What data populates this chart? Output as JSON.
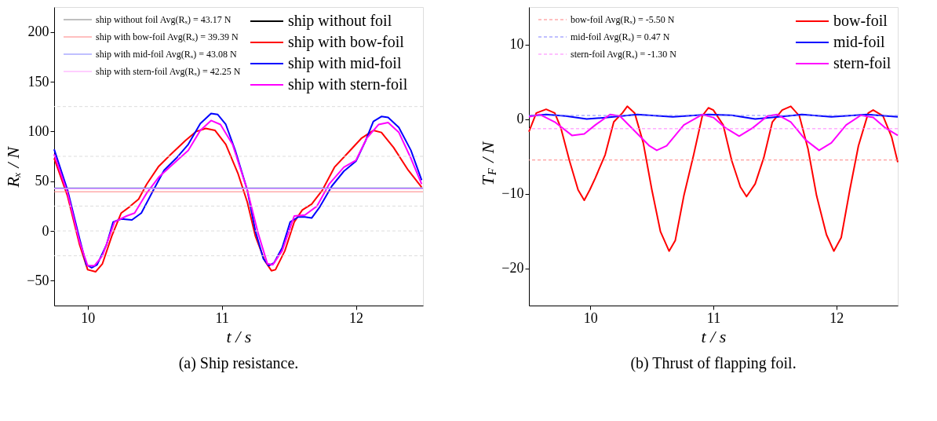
{
  "chart_data": [
    {
      "type": "line",
      "title": "(a) Ship resistance.",
      "xlabel": "t / s",
      "ylabel": "Rₓ / N",
      "xlim": [
        9.75,
        12.5
      ],
      "xticks": [
        10,
        11,
        12
      ],
      "ylim": [
        -75,
        225
      ],
      "yticks": [
        -50,
        0,
        50,
        100,
        150,
        200
      ],
      "legend": "top right",
      "ref_lines": [
        {
          "axis": "y",
          "value": 125,
          "color": "#dddddd",
          "line_style": "dashed"
        },
        {
          "axis": "y",
          "value": 75,
          "color": "#dddddd",
          "line_style": "dashed"
        },
        {
          "axis": "y",
          "value": 25,
          "color": "#dddddd",
          "line_style": "dashed"
        },
        {
          "axis": "y",
          "value": 0,
          "color": "#dddddd",
          "line_style": "dashed"
        },
        {
          "axis": "y",
          "value": -25,
          "color": "#dddddd",
          "line_style": "dashed"
        },
        {
          "axis": "y",
          "value": 43.17,
          "label": "ship without foil Avg(Rₓ) = 43.17 N",
          "color": "#808080",
          "line_style": "solid"
        },
        {
          "axis": "y",
          "value": 39.39,
          "label": "ship with bow-foil Avg(Rₓ) = 39.39 N",
          "color": "#ff8080",
          "line_style": "solid"
        },
        {
          "axis": "y",
          "value": 43.08,
          "label": "ship with mid-foil Avg(Rₓ) = 43.08 N",
          "color": "#8080ff",
          "line_style": "solid"
        },
        {
          "axis": "y",
          "value": 42.25,
          "label": "ship with stern-foil Avg(Rₓ) = 42.25 N",
          "color": "#ff9cff",
          "line_style": "solid"
        }
      ],
      "series": [
        {
          "name": "ship without foil",
          "color": "#000000"
        },
        {
          "name": "ship with bow-foil",
          "color": "#ff0000",
          "x": [
            9.75,
            9.85,
            9.94,
            10.0,
            10.06,
            10.11,
            10.18,
            10.25,
            10.31,
            10.38,
            10.44,
            10.53,
            10.62,
            10.73,
            10.81,
            10.88,
            10.95,
            11.03,
            11.12,
            11.19,
            11.25,
            11.32,
            11.37,
            11.4,
            11.47,
            11.54,
            11.6,
            11.67,
            11.75,
            11.84,
            11.93,
            12.04,
            12.13,
            12.19,
            12.28,
            12.39,
            12.49
          ],
          "values": [
            73,
            35,
            -14,
            -39,
            -41,
            -33,
            -5,
            18,
            24,
            32,
            47,
            65,
            77,
            91,
            100,
            103,
            101,
            87,
            58,
            29,
            -5,
            -30,
            -40,
            -39,
            -20,
            9,
            21,
            27,
            41,
            64,
            77,
            93,
            101,
            99,
            84,
            61,
            44
          ]
        },
        {
          "name": "ship with mid-foil",
          "color": "#0000ff",
          "x": [
            9.75,
            9.85,
            9.94,
            9.99,
            10.03,
            10.07,
            10.14,
            10.19,
            10.25,
            10.33,
            10.4,
            10.49,
            10.57,
            10.66,
            10.75,
            10.84,
            10.92,
            10.97,
            11.03,
            11.1,
            11.19,
            11.25,
            11.31,
            11.35,
            11.39,
            11.45,
            11.51,
            11.57,
            11.62,
            11.67,
            11.73,
            11.82,
            11.91,
            12.0,
            12.07,
            12.13,
            12.19,
            12.24,
            12.32,
            12.41,
            12.49
          ],
          "values": [
            82,
            41,
            -8,
            -34,
            -37,
            -34,
            -14,
            9,
            12,
            11,
            18,
            41,
            61,
            73,
            87,
            108,
            118,
            117,
            107,
            81,
            41,
            0,
            -28,
            -35,
            -32,
            -17,
            9,
            14,
            14,
            13,
            24,
            45,
            60,
            70,
            90,
            110,
            115,
            114,
            104,
            81,
            51
          ]
        },
        {
          "name": "ship with stern-foil",
          "color": "#ff00ff",
          "x": [
            9.75,
            9.85,
            9.94,
            10.0,
            10.05,
            10.11,
            10.2,
            10.29,
            10.35,
            10.44,
            10.53,
            10.66,
            10.75,
            10.84,
            10.92,
            10.99,
            11.08,
            11.19,
            11.27,
            11.34,
            11.38,
            11.45,
            11.54,
            11.62,
            11.71,
            11.8,
            11.91,
            12.0,
            12.08,
            12.17,
            12.24,
            12.32,
            12.41,
            12.49
          ],
          "values": [
            77,
            38,
            -11,
            -35,
            -35,
            -25,
            9,
            15,
            18,
            38,
            54,
            70,
            81,
            101,
            111,
            107,
            87,
            41,
            -2,
            -33,
            -34,
            -20,
            15,
            16,
            25,
            47,
            64,
            71,
            93,
            107,
            109,
            99,
            73,
            47
          ]
        }
      ]
    },
    {
      "type": "line",
      "title": "(b) Thrust of flapping foil.",
      "xlabel": "t / s",
      "ylabel": "T$_{F}$ / N",
      "xlim": [
        9.5,
        12.5
      ],
      "xticks": [
        10,
        11,
        12
      ],
      "ylim": [
        -25,
        15
      ],
      "yticks": [
        -20,
        -10,
        0,
        10
      ],
      "legend": "top right",
      "ref_lines": [
        {
          "axis": "y",
          "value": -5.5,
          "label": "bow-foil Avg(Rₓ) = -5.50 N",
          "color": "#ff8080",
          "line_style": "dashed"
        },
        {
          "axis": "y",
          "value": 0.47,
          "label": "mid-foil Avg(Rₓ) = 0.47 N",
          "color": "#8080ff",
          "line_style": "dashed"
        },
        {
          "axis": "y",
          "value": -1.3,
          "label": "stern-foil Avg(Rₓ) = -1.30 N",
          "color": "#ff80ff",
          "line_style": "dashed"
        }
      ],
      "series": [
        {
          "name": "bow-foil",
          "color": "#ff0000",
          "x": [
            9.5,
            9.56,
            9.64,
            9.71,
            9.76,
            9.83,
            9.9,
            9.95,
            9.995,
            10.04,
            10.12,
            10.19,
            10.26,
            10.3,
            10.36,
            10.43,
            10.5,
            10.57,
            10.64,
            10.69,
            10.76,
            10.84,
            10.91,
            10.96,
            11.0,
            11.08,
            11.15,
            11.22,
            11.27,
            11.34,
            11.41,
            11.48,
            11.56,
            11.63,
            11.7,
            11.77,
            11.84,
            11.92,
            11.98,
            12.04,
            12.11,
            12.18,
            12.26,
            12.3,
            12.38,
            12.45,
            12.5
          ],
          "values": [
            -1.7,
            0.8,
            1.3,
            0.8,
            -1.2,
            -5.6,
            -9.5,
            -10.9,
            -9.5,
            -7.9,
            -4.8,
            -0.4,
            0.8,
            1.7,
            0.8,
            -3.2,
            -9.5,
            -15.1,
            -17.7,
            -16.3,
            -10.3,
            -4.8,
            0.4,
            1.5,
            1.2,
            -0.8,
            -5.6,
            -9.1,
            -10.4,
            -8.7,
            -5.2,
            -0.4,
            1.2,
            1.7,
            0.4,
            -4.0,
            -10.3,
            -15.5,
            -17.7,
            -15.9,
            -9.5,
            -3.6,
            0.8,
            1.2,
            0.4,
            -2.4,
            -5.8
          ]
        },
        {
          "name": "mid-foil",
          "color": "#0000ff",
          "x": [
            9.5,
            9.64,
            9.8,
            9.97,
            10.14,
            10.38,
            10.67,
            10.96,
            11.15,
            11.34,
            11.53,
            11.72,
            11.96,
            12.25,
            12.5
          ],
          "values": [
            0.4,
            0.6,
            0.4,
            0,
            0.2,
            0.6,
            0.3,
            0.6,
            0.5,
            0,
            0.3,
            0.6,
            0.3,
            0.6,
            0.3
          ]
        },
        {
          "name": "stern-foil",
          "color": "#ff00ff",
          "x": [
            9.5,
            9.59,
            9.71,
            9.85,
            9.95,
            10.04,
            10.16,
            10.24,
            10.36,
            10.48,
            10.54,
            10.62,
            10.76,
            10.91,
            11.0,
            11.1,
            11.21,
            11.32,
            11.44,
            11.52,
            11.63,
            11.75,
            11.86,
            11.96,
            12.08,
            12.2,
            12.3,
            12.4,
            12.5
          ],
          "values": [
            0.3,
            0.6,
            -0.4,
            -2.2,
            -2.0,
            -0.8,
            0.6,
            0.4,
            -1.6,
            -3.6,
            -4.2,
            -3.6,
            -0.8,
            0.6,
            0.2,
            -1.2,
            -2.3,
            -1.2,
            0.4,
            0.6,
            -0.4,
            -2.8,
            -4.2,
            -3.2,
            -0.8,
            0.5,
            0.2,
            -1.2,
            -2.2
          ]
        }
      ]
    }
  ]
}
